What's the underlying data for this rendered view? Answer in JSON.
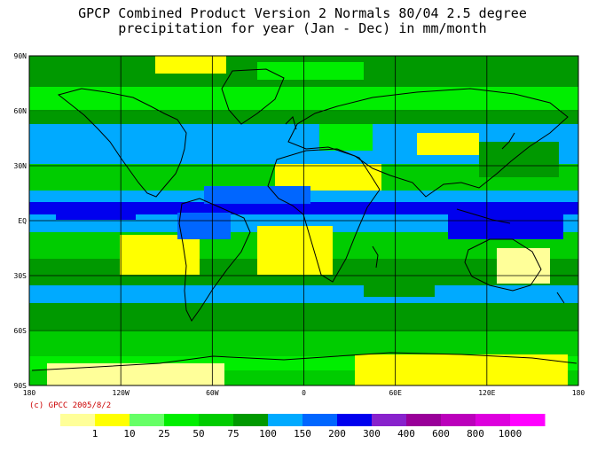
{
  "title": {
    "line1": "GPCP Combined Product Version 2  Normals 80/04 2.5 degree",
    "line2": "precipitation for year (Jan - Dec) in mm/month"
  },
  "axes": {
    "lat_labels": [
      "90N",
      "60N",
      "30N",
      "EQ",
      "30S",
      "60S",
      "90S"
    ],
    "lon_labels": [
      "180",
      "120W",
      "60W",
      "0",
      "60E",
      "120E",
      "180"
    ]
  },
  "copyright": "(c) GPCC 2005/8/2",
  "colorbar": {
    "colors": [
      "#ffff99",
      "#ffff00",
      "#66ff66",
      "#00ee00",
      "#00cc00",
      "#009900",
      "#00aaff",
      "#0066ff",
      "#0000ee",
      "#8822cc",
      "#990099",
      "#bb00bb",
      "#dd00dd",
      "#ff00ff"
    ],
    "labels": [
      "1",
      "10",
      "25",
      "50",
      "75",
      "100",
      "150",
      "200",
      "300",
      "400",
      "600",
      "800",
      "1000"
    ]
  },
  "colors": {
    "frame": "#000000",
    "grid": "#000000",
    "coast": "#000000"
  }
}
